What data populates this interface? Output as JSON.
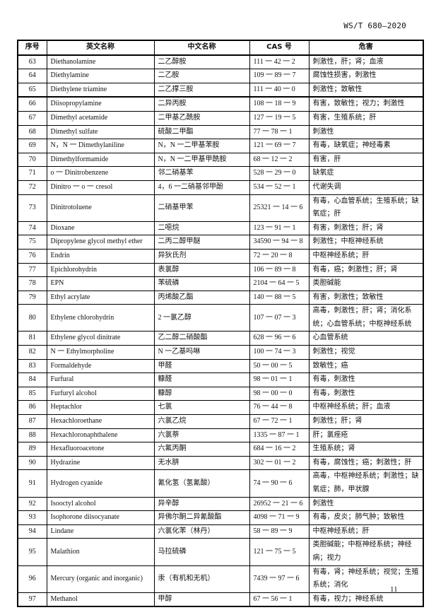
{
  "header": {
    "doc_code": "WS/T 680—2020"
  },
  "table": {
    "columns": [
      "序号",
      "英文名称",
      "中文名称",
      "CAS 号",
      "危害"
    ],
    "rows": [
      {
        "no": "63",
        "en": "Diethanolamine",
        "zh": "二乙醇胺",
        "cas": "111 一 42 一 2",
        "hazard": "刺激性，肝；肾；血液"
      },
      {
        "no": "64",
        "en": "Diethylamine",
        "zh": "二乙胺",
        "cas": "109 一 89 一 7",
        "hazard": "腐蚀性损害，刺激性"
      },
      {
        "no": "65",
        "en": "Diethylene triamine",
        "zh": "二乙撑三胺",
        "cas": "111 一 40 一 0",
        "hazard": "刺激性；致敏性"
      },
      {
        "no": "66",
        "en": "Diisopropylamine",
        "zh": "二异丙胺",
        "cas": "108 一 18 一 9",
        "hazard": "有害，致敏性；视力；刺激性"
      },
      {
        "no": "67",
        "en": "Dimethyl acetamide",
        "zh": "二甲基乙酰胺",
        "cas": "127 一 19 一 5",
        "hazard": "有害，生殖系统；肝"
      },
      {
        "no": "68",
        "en": "Dimethyl sulfate",
        "zh": "硫酸二甲酯",
        "cas": "77 一 78 一 1",
        "hazard": "刺激性"
      },
      {
        "no": "69",
        "en": "N，N 一 Dimethylaniline",
        "zh": "N，N 一二甲基苯胺",
        "cas": "121 一 69 一 7",
        "hazard": "有毒，缺氧症；神经毒素"
      },
      {
        "no": "70",
        "en": "Dimethylformamide",
        "zh": "N，N 一二甲基甲酰胺",
        "cas": "68 一 12 一 2",
        "hazard": "有害，肝"
      },
      {
        "no": "71",
        "en": "o 一 Dinitrobenzene",
        "zh": "邻二硝基苯",
        "cas": "528 一 29 一 0",
        "hazard": "缺氧症"
      },
      {
        "no": "72",
        "en": "Dinitro 一 o 一 cresol",
        "zh": "4，6 一二硝基邻甲酚",
        "cas": "534 一 52 一 1",
        "hazard": "代谢失调"
      },
      {
        "no": "73",
        "en": "Dinitrotoluene",
        "zh": "二硝基甲苯",
        "cas": "25321 一 14 一 6",
        "hazard": "有毒，心血管系统；生殖系统；缺氧症；肝"
      },
      {
        "no": "74",
        "en": "Dioxane",
        "zh": "二噁烷",
        "cas": "123 一 91 一 1",
        "hazard": "有害，刺激性；肝；肾"
      },
      {
        "no": "75",
        "en": "Dipropylene glycol methyl ether",
        "zh": "二丙二醇甲醚",
        "cas": "34590 一 94 一 8",
        "hazard": "刺激性；中枢神经系统"
      },
      {
        "no": "76",
        "en": "Endrin",
        "zh": "异狄氏剂",
        "cas": "72 一 20 一 8",
        "hazard": "中枢神经系统；肝"
      },
      {
        "no": "77",
        "en": "Epichlorohydrin",
        "zh": "表氯醇",
        "cas": "106 一 89 一 8",
        "hazard": "有毒，癌；刺激性；肝；肾"
      },
      {
        "no": "78",
        "en": "EPN",
        "zh": "苯硫磷",
        "cas": "2104 一 64 一 5",
        "hazard": "类胆碱能"
      },
      {
        "no": "79",
        "en": "Ethyl acrylate",
        "zh": "丙烯酸乙酯",
        "cas": "140 一 88 一 5",
        "hazard": "有害，刺激性；致敏性"
      },
      {
        "no": "80",
        "en": "Ethylene chlorohydrin",
        "zh": "2 一氯乙醇",
        "cas": "107 一 07 一 3",
        "hazard": "高毒，刺激性；肝；肾；消化系统；心血管系统；中枢神经系统"
      },
      {
        "no": "81",
        "en": "Ethylene glycol dinitrate",
        "zh": "乙二醇二硝酸酯",
        "cas": "628 一 96 一 6",
        "hazard": "心血管系统"
      },
      {
        "no": "82",
        "en": "N 一 Ethylmorpholine",
        "zh": "N 一乙基吗啉",
        "cas": "100 一 74 一 3",
        "hazard": "刺激性；视觉"
      },
      {
        "no": "83",
        "en": "Formaldehyde",
        "zh": "甲醛",
        "cas": "50 一 00 一 5",
        "hazard": "致敏性；癌"
      },
      {
        "no": "84",
        "en": "Furfural",
        "zh": "糠醛",
        "cas": "98 一 01 一 1",
        "hazard": "有毒，刺激性"
      },
      {
        "no": "85",
        "en": "Furfuryl alcohol",
        "zh": "糠醇",
        "cas": "98 一 00 一 0",
        "hazard": "有毒，刺激性"
      },
      {
        "no": "86",
        "en": "Heptachlor",
        "zh": "七氯",
        "cas": "76 一 44 一 8",
        "hazard": "中枢神经系统；肝；血液"
      },
      {
        "no": "87",
        "en": "Hexachloroethane",
        "zh": "六氯乙烷",
        "cas": "67 一 72 一 1",
        "hazard": "刺激性；肝；肾"
      },
      {
        "no": "88",
        "en": "Hexachloronaphthalene",
        "zh": "六氯萘",
        "cas": "1335 一 87 一 1",
        "hazard": "肝；氯痤疮"
      },
      {
        "no": "89",
        "en": "Hexafluoroacetone",
        "zh": "六氟丙酮",
        "cas": "684 一 16 一 2",
        "hazard": "生殖系统；肾"
      },
      {
        "no": "90",
        "en": "Hydrazine",
        "zh": "无水肼",
        "cas": "302 一 01 一 2",
        "hazard": "有毒，腐蚀性；癌；刺激性；肝"
      },
      {
        "no": "91",
        "en": "Hydrogen cyanide",
        "zh": "氰化氢（氢氰酸）",
        "cas": "74 一 90 一 6",
        "hazard": "高毒，中枢神经系统；刺激性；缺氧症；肺，甲状腺"
      },
      {
        "no": "92",
        "en": "Isooctyl alcohol",
        "zh": "异辛醇",
        "cas": "26952 一 21 一 6",
        "hazard": "刺激性"
      },
      {
        "no": "93",
        "en": "Isophorone diisocyanate",
        "zh": "异佛尔酮二异氰酸酯",
        "cas": "4098 一 71 一 9",
        "hazard": "有毒，皮炎；肺气肿；致敏性"
      },
      {
        "no": "94",
        "en": "Lindane",
        "zh": "六氯化苯（林丹）",
        "cas": "58 一 89 一 9",
        "hazard": "中枢神经系统；肝"
      },
      {
        "no": "95",
        "en": "Malathion",
        "zh": "马拉硫磷",
        "cas": "121 一 75 一 5",
        "hazard": "类胆碱能；中枢神经系统；神经病；视力"
      },
      {
        "no": "96",
        "en": "Mercury (organic and inorganic)",
        "zh": "汞（有机和无机）",
        "cas": "7439 一 97 一 6",
        "hazard": "有毒，肾；神经系统；视觉；生殖系统；消化"
      },
      {
        "no": "97",
        "en": "Methanol",
        "zh": "甲醇",
        "cas": "67 一 56 一 1",
        "hazard": "有毒，视力；神经系统"
      }
    ]
  },
  "footer": {
    "page_number": "11"
  }
}
